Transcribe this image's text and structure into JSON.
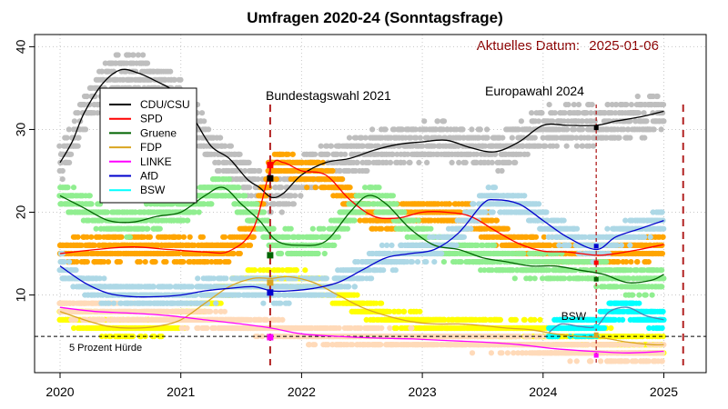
{
  "chart_data": {
    "type": "line",
    "title": "Umfragen 2020-24 (Sonntagsfrage)",
    "current_date_label": "Aktuelles Datum:",
    "current_date": "2025-01-06",
    "xlabel": "",
    "ylabel": "",
    "xlim": [
      2020.0,
      2025.35
    ],
    "ylim": [
      1.8,
      41.5
    ],
    "x_ticks": [
      2020,
      2021,
      2022,
      2023,
      2024,
      2025
    ],
    "x_tick_labels": [
      "2020",
      "2021",
      "2022",
      "2023",
      "2024",
      "2025"
    ],
    "y_ticks": [
      10,
      20,
      30,
      40
    ],
    "y_tick_labels": [
      "10",
      "20",
      "30",
      "40"
    ],
    "grid": true,
    "legend_position": "top-left",
    "threshold": {
      "y": 5,
      "label": "5 Prozent Hürde"
    },
    "events": [
      {
        "label": "Bundestagswahl 2021",
        "x": 2021.74
      },
      {
        "label": "Europawahl 2024",
        "x": 2024.44
      }
    ],
    "end_marker_x": 2025.16,
    "series": [
      {
        "name": "CDU/CSU",
        "line_color": "#000000",
        "point_color": "#bebebe",
        "spread": 2.2,
        "x": [
          2020.0,
          2020.1,
          2020.2,
          2020.35,
          2020.5,
          2020.65,
          2020.8,
          2020.95,
          2021.1,
          2021.25,
          2021.4,
          2021.55,
          2021.65,
          2021.75,
          2021.85,
          2022.0,
          2022.2,
          2022.4,
          2022.6,
          2022.8,
          2023.0,
          2023.2,
          2023.4,
          2023.6,
          2023.8,
          2024.0,
          2024.2,
          2024.44,
          2024.6,
          2024.8,
          2025.0
        ],
        "y": [
          26,
          28.5,
          32,
          35.5,
          37.2,
          36.8,
          35.8,
          34.5,
          31.5,
          28,
          26.5,
          24,
          23,
          21.8,
          22.3,
          24.5,
          26,
          26.5,
          27.5,
          28.2,
          28.5,
          28.7,
          27.8,
          27.3,
          28.5,
          30.5,
          30.5,
          30.5,
          31,
          31.5,
          32.2
        ]
      },
      {
        "name": "SPD",
        "line_color": "#ff0000",
        "point_color": "#ffa500",
        "spread": 1.4,
        "x": [
          2020.0,
          2020.3,
          2020.6,
          2020.9,
          2021.2,
          2021.4,
          2021.6,
          2021.75,
          2021.85,
          2022.0,
          2022.2,
          2022.4,
          2022.6,
          2022.8,
          2023.0,
          2023.2,
          2023.4,
          2023.6,
          2023.8,
          2024.0,
          2024.2,
          2024.44,
          2024.6,
          2024.8,
          2025.0
        ],
        "y": [
          15,
          15.5,
          15.8,
          15.5,
          15.2,
          15.3,
          18,
          25.5,
          26,
          25,
          24.5,
          21.5,
          19.5,
          19.3,
          20,
          20,
          19.5,
          17.8,
          16.2,
          15.3,
          15.2,
          14.8,
          15,
          15.5,
          16.1
        ]
      },
      {
        "name": "Gruene",
        "line_color": "#006400",
        "point_color": "#90ee90",
        "spread": 1.4,
        "x": [
          2020.0,
          2020.2,
          2020.4,
          2020.6,
          2020.8,
          2021.0,
          2021.2,
          2021.35,
          2021.5,
          2021.65,
          2021.8,
          2022.0,
          2022.2,
          2022.4,
          2022.55,
          2022.7,
          2022.9,
          2023.1,
          2023.3,
          2023.5,
          2023.7,
          2023.9,
          2024.1,
          2024.3,
          2024.5,
          2024.7,
          2024.9,
          2025.0
        ],
        "y": [
          22,
          20.5,
          19,
          18.8,
          19.5,
          20,
          22,
          23,
          21,
          19,
          16.5,
          16,
          16.5,
          20,
          22,
          21,
          18,
          16,
          15.5,
          14.5,
          14,
          13.5,
          13.5,
          13,
          12.5,
          11.5,
          11.8,
          12.5
        ]
      },
      {
        "name": "FDP",
        "line_color": "#daa520",
        "point_color": "#ffff00",
        "spread": 1.0,
        "x": [
          2020.0,
          2020.2,
          2020.4,
          2020.6,
          2020.8,
          2021.0,
          2021.2,
          2021.4,
          2021.6,
          2021.75,
          2021.9,
          2022.1,
          2022.3,
          2022.5,
          2022.7,
          2022.9,
          2023.1,
          2023.3,
          2023.5,
          2023.7,
          2023.9,
          2024.1,
          2024.3,
          2024.5,
          2024.7,
          2024.9,
          2025.0
        ],
        "y": [
          8,
          7,
          6.2,
          6,
          6.2,
          7,
          9,
          11,
          12,
          12,
          12.2,
          11.5,
          10,
          8.5,
          7.5,
          6.8,
          6.5,
          6.5,
          6.3,
          6,
          5.8,
          5.3,
          5,
          4.8,
          4.3,
          4,
          4
        ]
      },
      {
        "name": "LINKE",
        "line_color": "#ff00ff",
        "point_color": "#ffdab9",
        "spread": 0.9,
        "x": [
          2020.0,
          2020.3,
          2020.6,
          2020.9,
          2021.2,
          2021.5,
          2021.75,
          2022.0,
          2022.3,
          2022.6,
          2022.9,
          2023.2,
          2023.5,
          2023.8,
          2024.1,
          2024.4,
          2024.7,
          2025.0
        ],
        "y": [
          8.5,
          8,
          7.8,
          7.5,
          7,
          6.5,
          6,
          5.3,
          5,
          4.8,
          4.7,
          4.5,
          4.3,
          4,
          3.5,
          3.2,
          3,
          3.2
        ]
      },
      {
        "name": "AfD",
        "line_color": "#0000cd",
        "point_color": "#add8e6",
        "spread": 1.3,
        "x": [
          2020.0,
          2020.2,
          2020.4,
          2020.6,
          2020.8,
          2021.0,
          2021.2,
          2021.4,
          2021.6,
          2021.75,
          2021.9,
          2022.1,
          2022.3,
          2022.5,
          2022.7,
          2022.9,
          2023.1,
          2023.3,
          2023.5,
          2023.6,
          2023.8,
          2024.0,
          2024.2,
          2024.44,
          2024.6,
          2024.8,
          2025.0
        ],
        "y": [
          13.5,
          11.5,
          10.2,
          9.8,
          9.8,
          10,
          10.5,
          10.8,
          11,
          10.5,
          10.5,
          10.8,
          11.5,
          13,
          14.5,
          15,
          15.5,
          17.5,
          21,
          21.5,
          21,
          19,
          17,
          15.5,
          17,
          18,
          19
        ]
      },
      {
        "name": "BSW",
        "line_color": "#4682b4",
        "point_color": "#00ffff",
        "spread": 1.0,
        "x": [
          2024.05,
          2024.15,
          2024.3,
          2024.44,
          2024.55,
          2024.7,
          2024.85,
          2025.0
        ],
        "y": [
          5.5,
          6.5,
          6.2,
          6.2,
          8,
          8.5,
          7.5,
          7
        ]
      }
    ],
    "election_2021_results": [
      {
        "name": "CDU/CSU",
        "y": 24.1,
        "color": "#000000"
      },
      {
        "name": "SPD",
        "y": 25.7,
        "color": "#ff0000"
      },
      {
        "name": "Gruene",
        "y": 14.8,
        "color": "#006400"
      },
      {
        "name": "FDP",
        "y": 11.5,
        "color": "#daa520"
      },
      {
        "name": "LINKE",
        "y": 4.9,
        "color": "#ff00ff"
      },
      {
        "name": "AfD",
        "y": 10.3,
        "color": "#0000cd"
      }
    ],
    "european_2024_results": [
      {
        "name": "CDU/CSU",
        "y": 30.2,
        "color": "#000000"
      },
      {
        "name": "SPD",
        "y": 13.9,
        "color": "#ff0000"
      },
      {
        "name": "Gruene",
        "y": 11.9,
        "color": "#006400"
      },
      {
        "name": "FDP",
        "y": 5.2,
        "color": "#daa520"
      },
      {
        "name": "LINKE",
        "y": 2.7,
        "color": "#ff00ff"
      },
      {
        "name": "AfD",
        "y": 15.9,
        "color": "#0000cd"
      },
      {
        "name": "BSW",
        "y": 6.2,
        "color": "#00ffff"
      }
    ],
    "annotations": [
      {
        "text": "BSW",
        "x": 2024.15,
        "y": 7.4
      }
    ]
  }
}
